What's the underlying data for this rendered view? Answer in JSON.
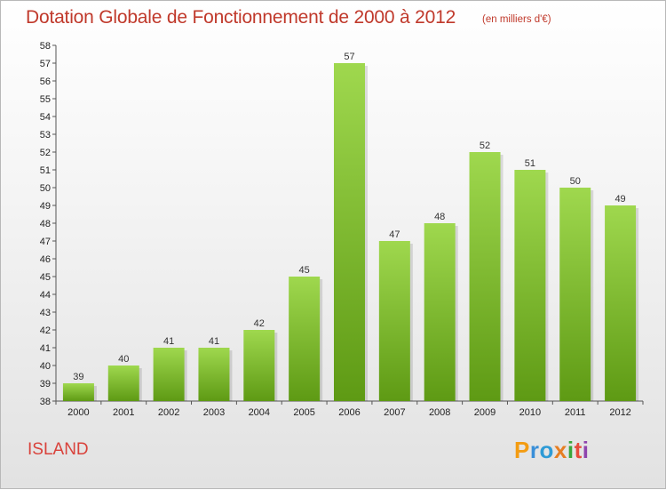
{
  "chart_data": {
    "type": "bar",
    "title": "Dotation Globale de Fonctionnement de 2000 à 2012",
    "subtitle": "(en milliers d'€)",
    "categories": [
      "2000",
      "2001",
      "2002",
      "2003",
      "2004",
      "2005",
      "2006",
      "2007",
      "2008",
      "2009",
      "2010",
      "2011",
      "2012"
    ],
    "values": [
      39,
      40,
      41,
      41,
      42,
      45,
      57,
      47,
      48,
      52,
      51,
      50,
      49
    ],
    "value_labels": [
      "39",
      "40",
      "41",
      "41",
      "42",
      "45",
      "57",
      "47",
      "48",
      "52",
      "51",
      "50",
      "49"
    ],
    "ylim": [
      38,
      58
    ],
    "yticks": [
      "38",
      "39",
      "40",
      "41",
      "42",
      "43",
      "44",
      "45",
      "46",
      "47",
      "48",
      "49",
      "50",
      "51",
      "52",
      "53",
      "54",
      "55",
      "56",
      "57",
      "58"
    ],
    "grid": false,
    "bar_color": "#7fbf2e"
  },
  "commune": "ISLAND",
  "logo": {
    "letters": [
      "P",
      "r",
      "o",
      "x",
      "i",
      "t",
      "i"
    ],
    "colors": [
      "#f39c12",
      "#3a8fd8",
      "#2e9bd6",
      "#e67e22",
      "#3aa63a",
      "#e74c3c",
      "#8e44ad"
    ]
  }
}
